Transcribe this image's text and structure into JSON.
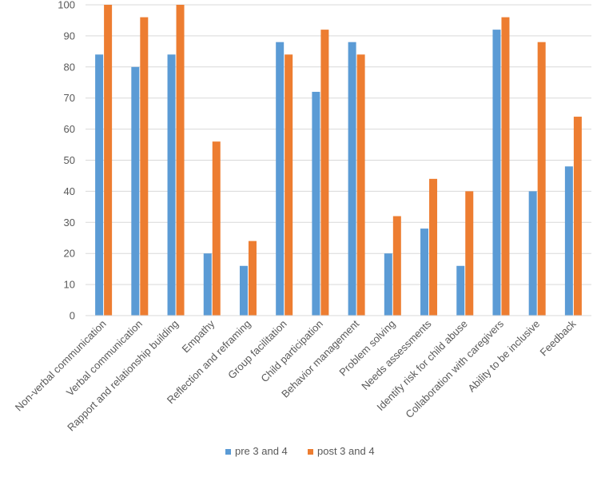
{
  "chart_data": {
    "type": "bar",
    "categories": [
      "Non-verbal communication",
      "Verbal communication",
      "Rapport and relationship building",
      "Empathy",
      "Reflection and reframing",
      "Group facilitation",
      "Child participation",
      "Behavior management",
      "Problem solving",
      "Needs assessments",
      "Identify risk for child abuse",
      "Collaboration with caregivers",
      "Ability to be inclusive",
      "Feedback"
    ],
    "series": [
      {
        "name": "pre 3 and 4",
        "color": "#5B9BD5",
        "values": [
          84,
          80,
          84,
          20,
          16,
          88,
          72,
          88,
          20,
          28,
          16,
          92,
          40,
          48
        ]
      },
      {
        "name": "post 3 and 4",
        "color": "#ED7D31",
        "values": [
          100,
          96,
          100,
          56,
          24,
          84,
          92,
          84,
          32,
          44,
          40,
          96,
          88,
          64
        ]
      }
    ],
    "ylim": [
      0,
      100
    ],
    "yticks": [
      0,
      10,
      20,
      30,
      40,
      50,
      60,
      70,
      80,
      90,
      100
    ],
    "grid": true,
    "legend_position": "bottom",
    "title": "",
    "xlabel": "",
    "ylabel": ""
  }
}
